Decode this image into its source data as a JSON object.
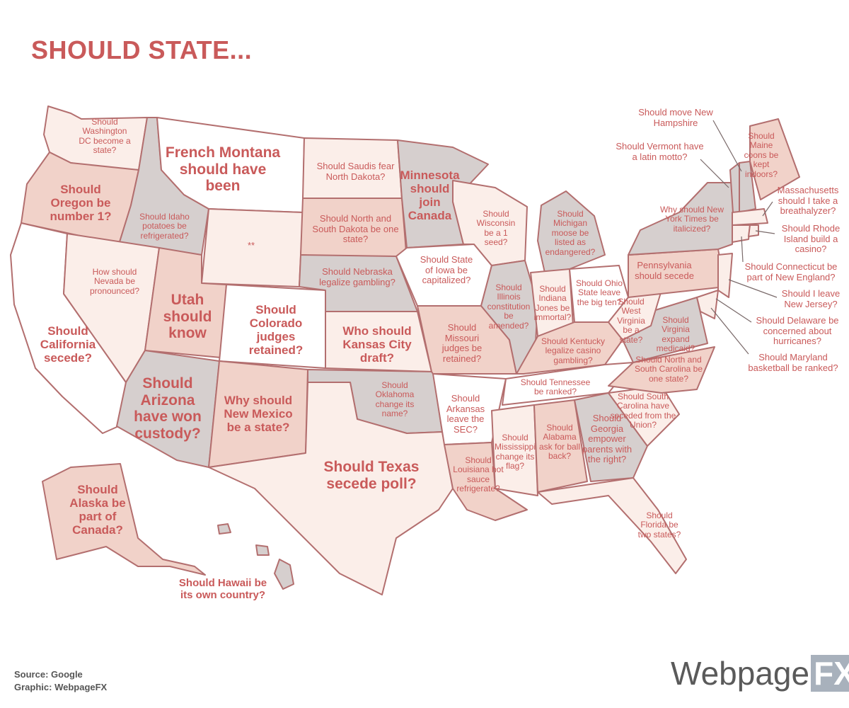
{
  "title": "SHOULD STATE...",
  "source": "Source: Google",
  "graphic": "Graphic: WebpageFX",
  "brand": {
    "name": "Webpage",
    "suffix": "FX"
  },
  "colors": {
    "text": "#c95a5a",
    "pale": "#fbeee9",
    "mid": "#f1d2c9",
    "gray": "#d6cfce",
    "white": "#ffffff",
    "border": "#b36f6f"
  },
  "states": {
    "washington": "Should Washington DC become a state?",
    "oregon": "Should Oregon be number 1?",
    "california": "Should California secede?",
    "idaho": "Should Idaho potatoes be refrigerated?",
    "nevada": "How should Nevada be pronounced?",
    "montana": "French Montana should have been",
    "wyoming": "**",
    "utah": "Utah should know",
    "colorado": "Should Colorado judges retained?",
    "arizona": "Should Arizona have won custody?",
    "new_mexico": "Why should New Mexico be a state?",
    "north_dakota": "Should Saudis fear North Dakota?",
    "south_dakota": "Should North and South Dakota be one state?",
    "nebraska": "Should Nebraska legalize gambling?",
    "kansas": "Who should Kansas City draft?",
    "oklahoma": "Should Oklahoma change its name?",
    "texas": "Should Texas secede poll?",
    "minnesota": "Minnesota should join Canada",
    "iowa": "Should State of Iowa be capitalized?",
    "missouri": "Should Missouri judges be retained?",
    "arkansas": "Should Arkansas leave the SEC?",
    "louisiana": "Should Louisiana hot sauce refrigerate?",
    "wisconsin": "Should Wisconsin be a 1 seed?",
    "illinois": "Should Illinois constitution be amended?",
    "michigan": "Should Michigan moose be listed as endangered?",
    "indiana": "Should Indiana Jones be immortal?",
    "ohio": "Should Ohio State leave the big ten?",
    "kentucky": "Should Kentucky legalize casino gambling?",
    "tennessee": "Should Tennessee be ranked?",
    "mississippi": "Should Mississippi change its flag?",
    "alabama": "Should Alabama ask for ball back?",
    "georgia": "Should Georgia empower parents with the right?",
    "florida": "Should Florida be two states?",
    "south_carolina": "Should South Carolina have seceded from the Union?",
    "north_carolina": "Should North and South Carolina be one state?",
    "virginia": "Should Virginia expand medicaid?",
    "west_virginia": "Should West Virginia be a state?",
    "pennsylvania": "Pennsylvania should secede",
    "new_york": "Why should New York Times be italicized?",
    "maine": "Should Maine coons be kept indoors?",
    "alaska": "Should Alaska be part of Canada?",
    "hawaii": "Should Hawaii be its own country?",
    "new_hampshire": "Should move New Hampshire",
    "vermont": "Should Vermont have a latin motto?",
    "massachusetts": "Massachusetts should I take a breathalyzer?",
    "rhode_island": "Should Rhode Island build a casino?",
    "connecticut": "Should Connecticut be part of New England?",
    "new_jersey": "Should I leave New Jersey?",
    "delaware": "Should Delaware be concerned about hurricanes?",
    "maryland": "Should Maryland basketball be ranked?"
  }
}
